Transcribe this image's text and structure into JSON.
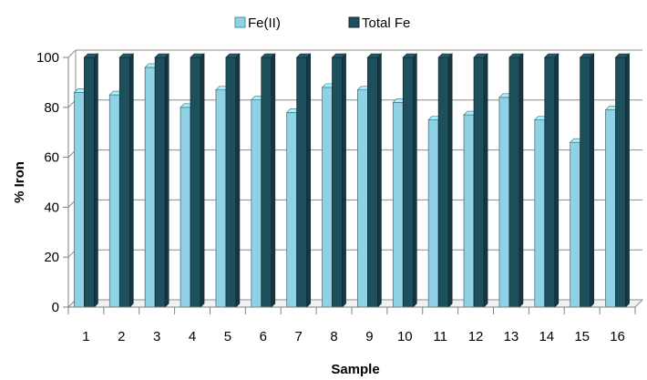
{
  "chart_data": {
    "type": "bar",
    "categories": [
      "1",
      "2",
      "3",
      "4",
      "5",
      "6",
      "7",
      "8",
      "9",
      "10",
      "11",
      "12",
      "13",
      "14",
      "15",
      "16"
    ],
    "series": [
      {
        "name": "Fe(II)",
        "values": [
          86,
          85,
          96,
          80,
          87,
          83,
          78,
          88,
          87,
          82,
          75,
          77,
          84,
          75,
          66,
          79
        ]
      },
      {
        "name": "Total Fe",
        "values": [
          100,
          100,
          100,
          100,
          100,
          100,
          100,
          100,
          100,
          100,
          100,
          100,
          100,
          100,
          100,
          100
        ]
      }
    ],
    "title": "",
    "xlabel": "Sample",
    "ylabel": "% Iron",
    "ylim": [
      0,
      100
    ],
    "yticks": [
      "0",
      "20",
      "40",
      "60",
      "80",
      "100"
    ],
    "grid": true,
    "legend_position": "top-center",
    "colors": {
      "Fe(II)": "#8fd2e6",
      "Total Fe": "#1d4f5d"
    }
  }
}
